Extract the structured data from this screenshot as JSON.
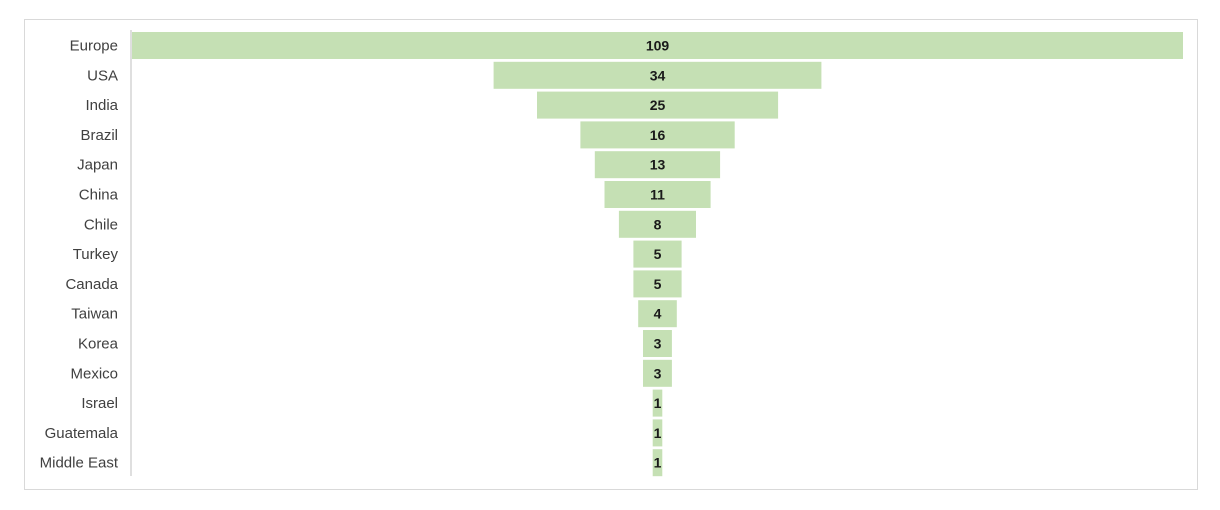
{
  "chart_data": {
    "type": "bar",
    "subtype": "funnel",
    "title": "",
    "xlabel": "",
    "ylabel": "",
    "categories": [
      "Europe",
      "USA",
      "India",
      "Brazil",
      "Japan",
      "China",
      "Chile",
      "Turkey",
      "Canada",
      "Taiwan",
      "Korea",
      "Mexico",
      "Israel",
      "Guatemala",
      "Middle East"
    ],
    "values": [
      109,
      34,
      25,
      16,
      13,
      11,
      8,
      5,
      5,
      4,
      3,
      3,
      1,
      1,
      1
    ],
    "xlim": [
      0,
      109
    ],
    "data_labels": "centered",
    "grid": false,
    "legend": "none",
    "colors": {
      "bar": "#c5e0b4",
      "axis": "#bfbfbf",
      "frame": "#d9d9d9",
      "label": "#404040",
      "value": "#1a1a1a"
    }
  }
}
